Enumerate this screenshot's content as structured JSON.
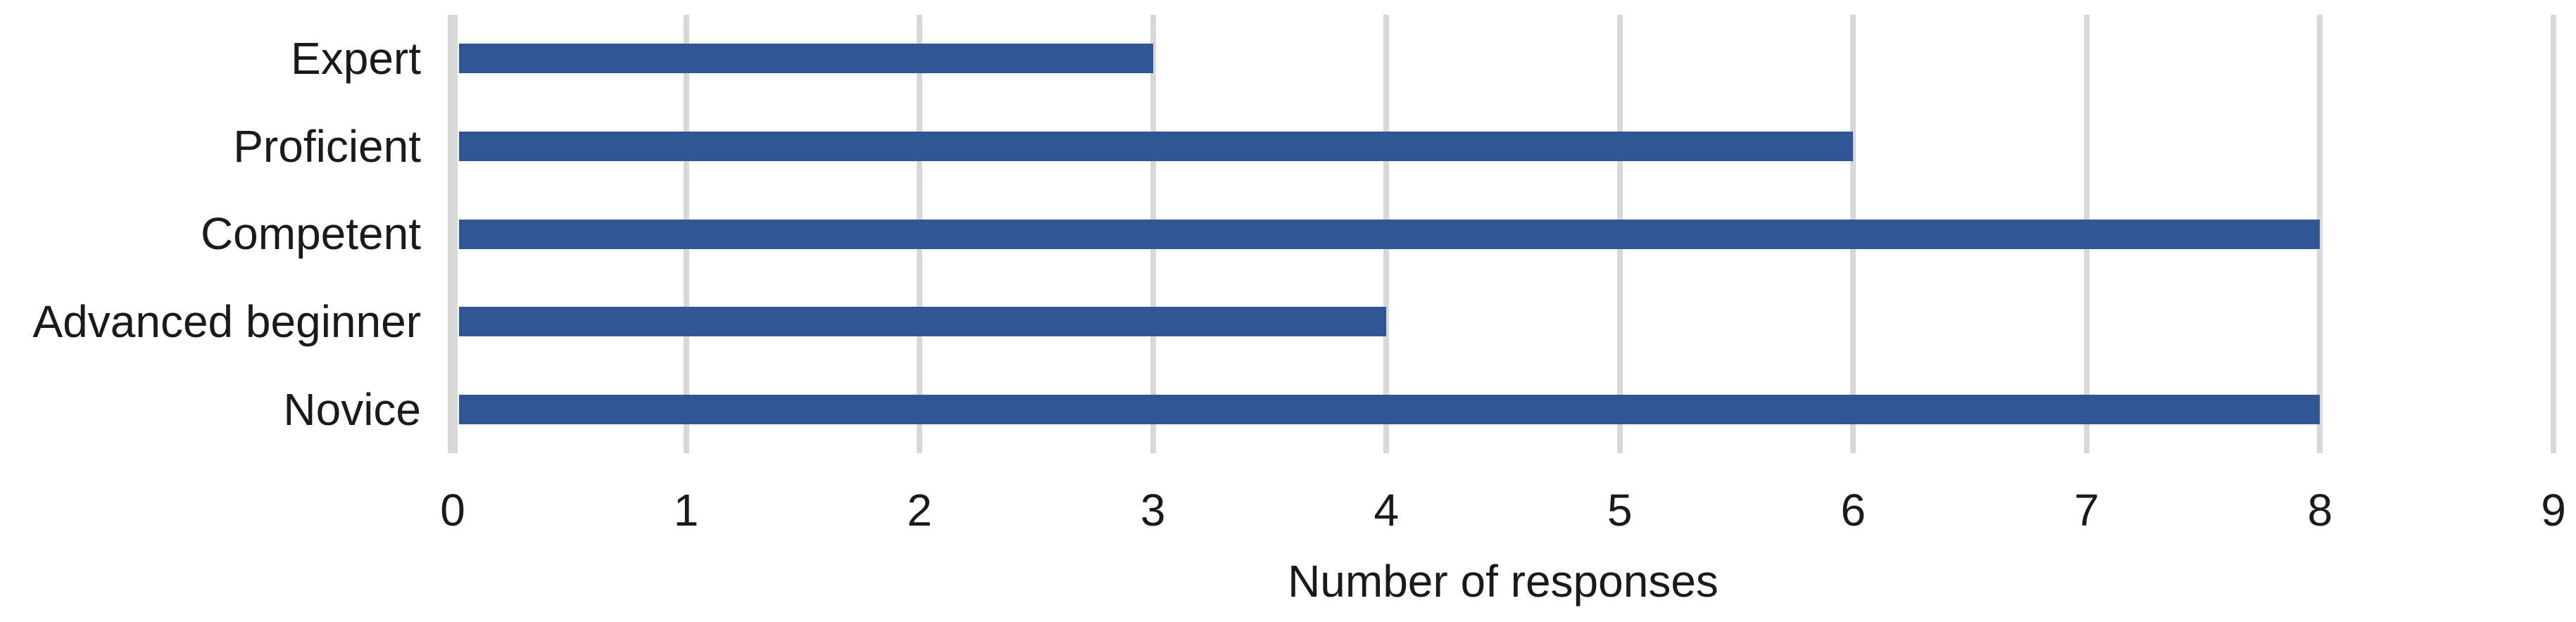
{
  "chart_data": {
    "type": "bar",
    "orientation": "horizontal",
    "title": "",
    "categories": [
      "Expert",
      "Proficient",
      "Competent",
      "Advanced beginner",
      "Novice"
    ],
    "values": [
      3,
      6,
      8,
      4,
      8
    ],
    "xlabel": "Number of responses",
    "ylabel": "",
    "xlim": [
      0,
      9
    ],
    "xticks": [
      "0",
      "1",
      "2",
      "3",
      "4",
      "5",
      "6",
      "7",
      "8",
      "9"
    ],
    "grid": "vertical-gridlines-only",
    "legend_position": "none",
    "colors": {
      "bar": "#2F5594",
      "gridline": "#D8D8D8",
      "text": "#1A1A1A",
      "background": "#FFFFFF"
    }
  }
}
